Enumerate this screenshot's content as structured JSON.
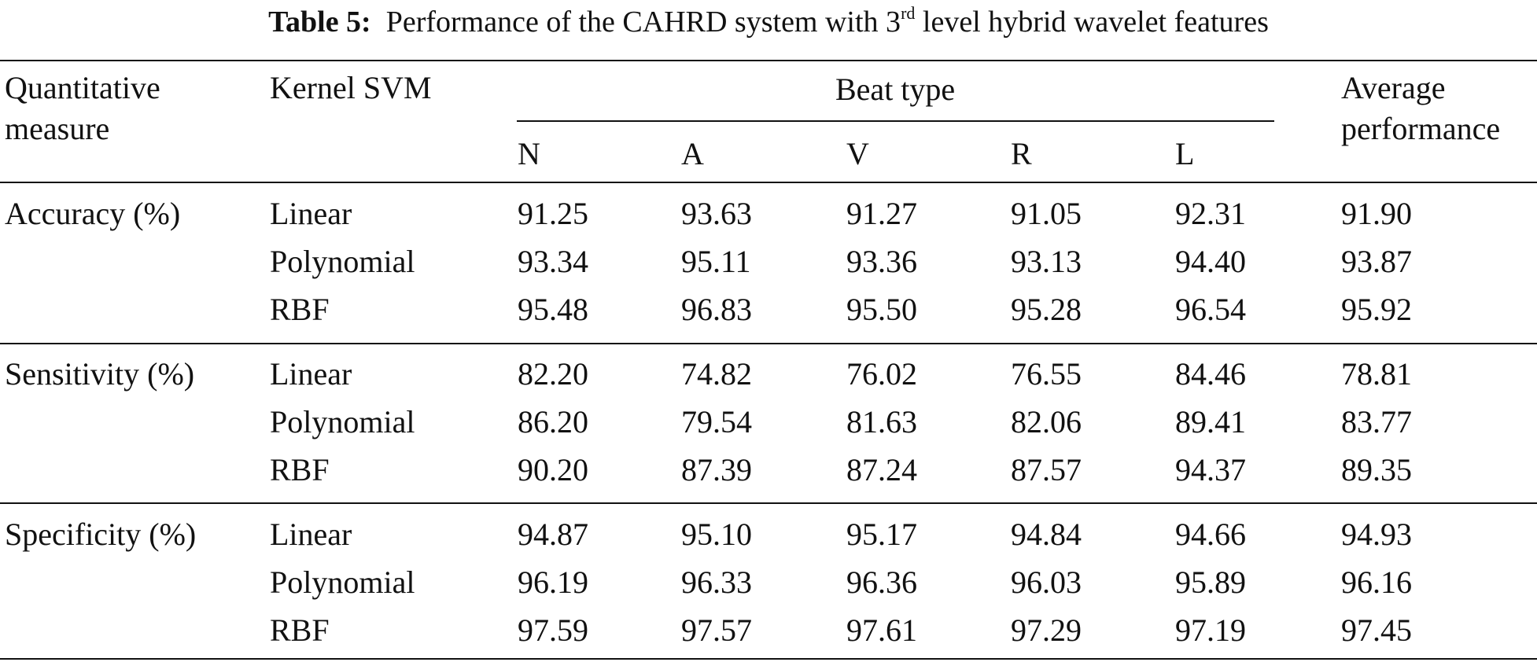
{
  "caption": {
    "label": "Table 5:",
    "text_before": "Performance of the CAHRD system with 3",
    "superscript": "rd",
    "text_after": " level hybrid wavelet features"
  },
  "header": {
    "measure_line1": "Quantitative",
    "measure_line2": "measure",
    "kernel": "Kernel SVM",
    "group": "Beat type",
    "beats": [
      "N",
      "A",
      "V",
      "R",
      "L"
    ],
    "avg_line1": "Average",
    "avg_line2": "performance"
  },
  "groups": [
    {
      "measure": "Accuracy (%)",
      "rows": [
        {
          "kernel": "Linear",
          "values": [
            "91.25",
            "93.63",
            "91.27",
            "91.05",
            "92.31",
            "91.90"
          ]
        },
        {
          "kernel": "Polynomial",
          "values": [
            "93.34",
            "95.11",
            "93.36",
            "93.13",
            "94.40",
            "93.87"
          ]
        },
        {
          "kernel": "RBF",
          "values": [
            "95.48",
            "96.83",
            "95.50",
            "95.28",
            "96.54",
            "95.92"
          ]
        }
      ]
    },
    {
      "measure": "Sensitivity (%)",
      "rows": [
        {
          "kernel": "Linear",
          "values": [
            "82.20",
            "74.82",
            "76.02",
            "76.55",
            "84.46",
            "78.81"
          ]
        },
        {
          "kernel": "Polynomial",
          "values": [
            "86.20",
            "79.54",
            "81.63",
            "82.06",
            "89.41",
            "83.77"
          ]
        },
        {
          "kernel": "RBF",
          "values": [
            "90.20",
            "87.39",
            "87.24",
            "87.57",
            "94.37",
            "89.35"
          ]
        }
      ]
    },
    {
      "measure": "Specificity (%)",
      "rows": [
        {
          "kernel": "Linear",
          "values": [
            "94.87",
            "95.10",
            "95.17",
            "94.84",
            "94.66",
            "94.93"
          ]
        },
        {
          "kernel": "Polynomial",
          "values": [
            "96.19",
            "96.33",
            "96.36",
            "96.03",
            "95.89",
            "96.16"
          ]
        },
        {
          "kernel": "RBF",
          "values": [
            "97.59",
            "97.57",
            "97.61",
            "97.29",
            "97.19",
            "97.45"
          ]
        }
      ]
    }
  ]
}
